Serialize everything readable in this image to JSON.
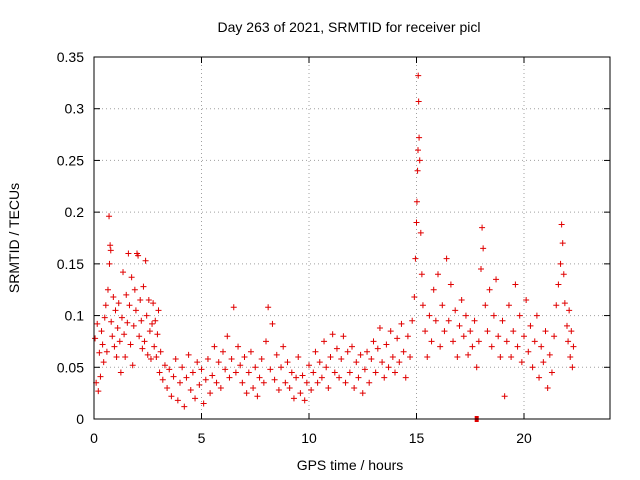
{
  "chart_data": {
    "type": "scatter",
    "title": "Day 263 of 2021, SRMTID for receiver picl",
    "xlabel": "GPS time / hours",
    "ylabel": "SRMTID / TECUs",
    "xlim": [
      0,
      24
    ],
    "ylim": [
      0,
      0.35
    ],
    "xticks": [
      0,
      5,
      10,
      15,
      20
    ],
    "xtick_labels": [
      "0",
      "5",
      "10",
      "15",
      "20"
    ],
    "yticks": [
      0,
      0.05,
      0.1,
      0.15,
      0.2,
      0.25,
      0.3,
      0.35
    ],
    "ytick_labels": [
      "0",
      "0.05",
      "0.1",
      "0.15",
      "0.2",
      "0.25",
      "0.3",
      "0.35"
    ],
    "grid": true,
    "marker": "plus",
    "color": "#e00000",
    "series": [
      {
        "name": "SRMTID",
        "points": [
          [
            0.05,
            0.078
          ],
          [
            0.1,
            0.035
          ],
          [
            0.15,
            0.092
          ],
          [
            0.2,
            0.027
          ],
          [
            0.25,
            0.064
          ],
          [
            0.3,
            0.041
          ],
          [
            0.35,
            0.085
          ],
          [
            0.4,
            0.072
          ],
          [
            0.45,
            0.055
          ],
          [
            0.5,
            0.098
          ],
          [
            0.55,
            0.11
          ],
          [
            0.6,
            0.065
          ],
          [
            0.65,
            0.125
          ],
          [
            0.7,
            0.196
          ],
          [
            0.72,
            0.15
          ],
          [
            0.75,
            0.168
          ],
          [
            0.78,
            0.163
          ],
          [
            0.8,
            0.094
          ],
          [
            0.85,
            0.08
          ],
          [
            0.9,
            0.118
          ],
          [
            0.95,
            0.07
          ],
          [
            1.0,
            0.105
          ],
          [
            1.05,
            0.06
          ],
          [
            1.1,
            0.088
          ],
          [
            1.15,
            0.112
          ],
          [
            1.2,
            0.075
          ],
          [
            1.25,
            0.045
          ],
          [
            1.3,
            0.098
          ],
          [
            1.35,
            0.142
          ],
          [
            1.4,
            0.082
          ],
          [
            1.45,
            0.06
          ],
          [
            1.5,
            0.12
          ],
          [
            1.55,
            0.093
          ],
          [
            1.6,
            0.16
          ],
          [
            1.65,
            0.11
          ],
          [
            1.7,
            0.072
          ],
          [
            1.75,
            0.137
          ],
          [
            1.8,
            0.052
          ],
          [
            1.85,
            0.09
          ],
          [
            1.9,
            0.125
          ],
          [
            1.95,
            0.105
          ],
          [
            2.0,
            0.16
          ],
          [
            2.05,
            0.158
          ],
          [
            2.1,
            0.08
          ],
          [
            2.15,
            0.115
          ],
          [
            2.2,
            0.095
          ],
          [
            2.25,
            0.068
          ],
          [
            2.3,
            0.128
          ],
          [
            2.35,
            0.075
          ],
          [
            2.4,
            0.153
          ],
          [
            2.45,
            0.1
          ],
          [
            2.5,
            0.062
          ],
          [
            2.55,
            0.115
          ],
          [
            2.6,
            0.085
          ],
          [
            2.65,
            0.058
          ],
          [
            2.7,
            0.092
          ],
          [
            2.75,
            0.112
          ],
          [
            2.8,
            0.07
          ],
          [
            2.85,
            0.095
          ],
          [
            2.9,
            0.06
          ],
          [
            2.95,
            0.082
          ],
          [
            3.0,
            0.105
          ],
          [
            3.05,
            0.045
          ],
          [
            3.1,
            0.065
          ],
          [
            3.2,
            0.038
          ],
          [
            3.3,
            0.052
          ],
          [
            3.4,
            0.03
          ],
          [
            3.5,
            0.048
          ],
          [
            3.6,
            0.022
          ],
          [
            3.7,
            0.041
          ],
          [
            3.8,
            0.058
          ],
          [
            3.9,
            0.018
          ],
          [
            4.0,
            0.035
          ],
          [
            4.1,
            0.05
          ],
          [
            4.2,
            0.012
          ],
          [
            4.3,
            0.04
          ],
          [
            4.4,
            0.062
          ],
          [
            4.5,
            0.028
          ],
          [
            4.6,
            0.045
          ],
          [
            4.7,
            0.02
          ],
          [
            4.8,
            0.055
          ],
          [
            4.9,
            0.033
          ],
          [
            5.0,
            0.048
          ],
          [
            5.1,
            0.015
          ],
          [
            5.2,
            0.038
          ],
          [
            5.3,
            0.058
          ],
          [
            5.4,
            0.025
          ],
          [
            5.5,
            0.042
          ],
          [
            5.6,
            0.07
          ],
          [
            5.7,
            0.035
          ],
          [
            5.8,
            0.055
          ],
          [
            5.9,
            0.03
          ],
          [
            6.0,
            0.065
          ],
          [
            6.1,
            0.048
          ],
          [
            6.2,
            0.08
          ],
          [
            6.3,
            0.04
          ],
          [
            6.4,
            0.058
          ],
          [
            6.5,
            0.108
          ],
          [
            6.6,
            0.045
          ],
          [
            6.7,
            0.07
          ],
          [
            6.8,
            0.052
          ],
          [
            6.9,
            0.035
          ],
          [
            7.0,
            0.06
          ],
          [
            7.1,
            0.025
          ],
          [
            7.2,
            0.045
          ],
          [
            7.3,
            0.065
          ],
          [
            7.4,
            0.03
          ],
          [
            7.5,
            0.05
          ],
          [
            7.6,
            0.022
          ],
          [
            7.7,
            0.04
          ],
          [
            7.8,
            0.058
          ],
          [
            7.9,
            0.035
          ],
          [
            8.0,
            0.075
          ],
          [
            8.1,
            0.108
          ],
          [
            8.2,
            0.048
          ],
          [
            8.3,
            0.092
          ],
          [
            8.4,
            0.038
          ],
          [
            8.5,
            0.062
          ],
          [
            8.6,
            0.028
          ],
          [
            8.7,
            0.05
          ],
          [
            8.8,
            0.07
          ],
          [
            8.9,
            0.035
          ],
          [
            9.0,
            0.055
          ],
          [
            9.1,
            0.03
          ],
          [
            9.2,
            0.045
          ],
          [
            9.3,
            0.02
          ],
          [
            9.4,
            0.04
          ],
          [
            9.5,
            0.06
          ],
          [
            9.6,
            0.025
          ],
          [
            9.7,
            0.042
          ],
          [
            9.8,
            0.018
          ],
          [
            9.9,
            0.035
          ],
          [
            10.0,
            0.052
          ],
          [
            10.1,
            0.028
          ],
          [
            10.2,
            0.045
          ],
          [
            10.3,
            0.065
          ],
          [
            10.4,
            0.035
          ],
          [
            10.5,
            0.055
          ],
          [
            10.6,
            0.04
          ],
          [
            10.7,
            0.075
          ],
          [
            10.8,
            0.05
          ],
          [
            10.9,
            0.03
          ],
          [
            11.0,
            0.06
          ],
          [
            11.1,
            0.082
          ],
          [
            11.2,
            0.045
          ],
          [
            11.3,
            0.068
          ],
          [
            11.4,
            0.04
          ],
          [
            11.5,
            0.058
          ],
          [
            11.6,
            0.08
          ],
          [
            11.7,
            0.035
          ],
          [
            11.8,
            0.065
          ],
          [
            11.9,
            0.045
          ],
          [
            12.0,
            0.07
          ],
          [
            12.1,
            0.03
          ],
          [
            12.2,
            0.055
          ],
          [
            12.3,
            0.04
          ],
          [
            12.4,
            0.062
          ],
          [
            12.5,
            0.025
          ],
          [
            12.6,
            0.048
          ],
          [
            12.7,
            0.065
          ],
          [
            12.8,
            0.035
          ],
          [
            12.9,
            0.058
          ],
          [
            13.0,
            0.075
          ],
          [
            13.1,
            0.045
          ],
          [
            13.2,
            0.068
          ],
          [
            13.3,
            0.088
          ],
          [
            13.4,
            0.055
          ],
          [
            13.5,
            0.04
          ],
          [
            13.6,
            0.072
          ],
          [
            13.7,
            0.05
          ],
          [
            13.8,
            0.085
          ],
          [
            13.9,
            0.06
          ],
          [
            14.0,
            0.045
          ],
          [
            14.1,
            0.078
          ],
          [
            14.2,
            0.055
          ],
          [
            14.3,
            0.092
          ],
          [
            14.4,
            0.065
          ],
          [
            14.5,
            0.04
          ],
          [
            14.6,
            0.08
          ],
          [
            14.7,
            0.06
          ],
          [
            14.8,
            0.095
          ],
          [
            14.9,
            0.118
          ],
          [
            14.95,
            0.155
          ],
          [
            15.0,
            0.19
          ],
          [
            15.02,
            0.21
          ],
          [
            15.05,
            0.24
          ],
          [
            15.07,
            0.26
          ],
          [
            15.08,
            0.332
          ],
          [
            15.1,
            0.307
          ],
          [
            15.12,
            0.272
          ],
          [
            15.15,
            0.25
          ],
          [
            15.2,
            0.18
          ],
          [
            15.25,
            0.14
          ],
          [
            15.3,
            0.11
          ],
          [
            15.4,
            0.085
          ],
          [
            15.5,
            0.06
          ],
          [
            15.6,
            0.1
          ],
          [
            15.7,
            0.075
          ],
          [
            15.8,
            0.125
          ],
          [
            15.9,
            0.095
          ],
          [
            16.0,
            0.14
          ],
          [
            16.1,
            0.07
          ],
          [
            16.2,
            0.11
          ],
          [
            16.3,
            0.085
          ],
          [
            16.4,
            0.155
          ],
          [
            16.5,
            0.095
          ],
          [
            16.6,
            0.13
          ],
          [
            16.7,
            0.075
          ],
          [
            16.8,
            0.105
          ],
          [
            16.9,
            0.06
          ],
          [
            17.0,
            0.09
          ],
          [
            17.1,
            0.115
          ],
          [
            17.2,
            0.08
          ],
          [
            17.3,
            0.1
          ],
          [
            17.4,
            0.062
          ],
          [
            17.5,
            0.085
          ],
          [
            17.6,
            0.07
          ],
          [
            17.7,
            0.095
          ],
          [
            17.8,
            0.05
          ],
          [
            17.9,
            0.075
          ],
          [
            18.0,
            0.145
          ],
          [
            18.05,
            0.185
          ],
          [
            18.1,
            0.165
          ],
          [
            18.2,
            0.11
          ],
          [
            18.3,
            0.085
          ],
          [
            18.4,
            0.125
          ],
          [
            18.5,
            0.07
          ],
          [
            18.6,
            0.1
          ],
          [
            18.7,
            0.135
          ],
          [
            18.8,
            0.08
          ],
          [
            18.9,
            0.06
          ],
          [
            19.0,
            0.095
          ],
          [
            19.1,
            0.022
          ],
          [
            19.2,
            0.075
          ],
          [
            19.3,
            0.11
          ],
          [
            19.4,
            0.06
          ],
          [
            19.5,
            0.085
          ],
          [
            19.6,
            0.13
          ],
          [
            19.7,
            0.07
          ],
          [
            19.8,
            0.1
          ],
          [
            19.9,
            0.055
          ],
          [
            20.0,
            0.08
          ],
          [
            20.1,
            0.115
          ],
          [
            20.2,
            0.065
          ],
          [
            20.3,
            0.09
          ],
          [
            20.4,
            0.05
          ],
          [
            20.5,
            0.075
          ],
          [
            20.6,
            0.1
          ],
          [
            20.7,
            0.04
          ],
          [
            20.8,
            0.07
          ],
          [
            20.9,
            0.055
          ],
          [
            21.0,
            0.085
          ],
          [
            21.1,
            0.03
          ],
          [
            21.2,
            0.062
          ],
          [
            21.3,
            0.045
          ],
          [
            21.4,
            0.08
          ],
          [
            21.5,
            0.11
          ],
          [
            21.6,
            0.13
          ],
          [
            21.7,
            0.15
          ],
          [
            21.75,
            0.188
          ],
          [
            21.8,
            0.17
          ],
          [
            21.85,
            0.14
          ],
          [
            21.9,
            0.112
          ],
          [
            22.0,
            0.09
          ],
          [
            22.05,
            0.075
          ],
          [
            22.1,
            0.105
          ],
          [
            22.15,
            0.06
          ],
          [
            22.2,
            0.085
          ],
          [
            22.25,
            0.05
          ],
          [
            22.3,
            0.07
          ]
        ]
      }
    ],
    "outlier_marker": {
      "x": 17.8,
      "y": 0.0
    }
  }
}
